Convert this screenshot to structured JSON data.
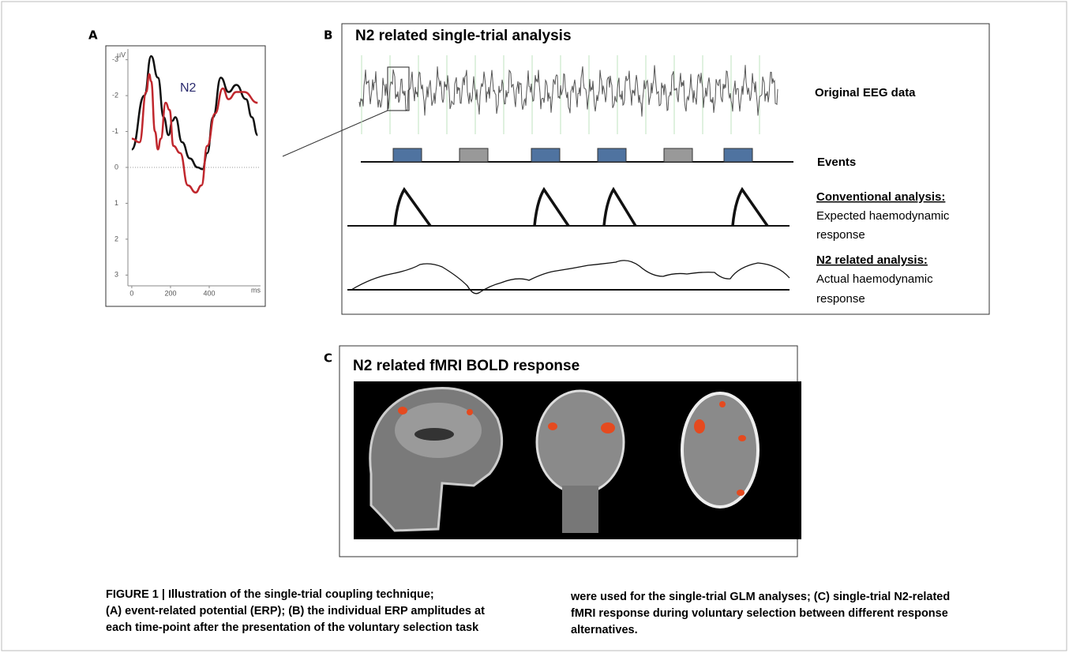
{
  "panels": {
    "a": {
      "label": "A",
      "chart": {
        "type": "line",
        "y_unit": "μV",
        "x_unit": "ms",
        "annotation": "N2",
        "xlim": [
          -20,
          665
        ],
        "ylim": [
          3.3,
          -3.3
        ],
        "xticks": [
          0,
          200,
          400
        ],
        "yticks": [
          -3,
          -2,
          -1,
          0,
          1,
          2,
          3
        ],
        "series": [
          {
            "color": "#111111",
            "x": [
              0,
              65,
              100,
              135,
              165,
              190,
              210,
              225,
              260,
              300,
              340,
              365,
              390,
              420,
              460,
              500,
              540,
              590,
              620,
              650
            ],
            "values": [
              -0.5,
              -2,
              -3.1,
              -2.5,
              -1.4,
              -0.9,
              -1.3,
              -1.4,
              -0.7,
              -0.25,
              0,
              0.05,
              -0.4,
              -1.4,
              -2.5,
              -2.1,
              -2.3,
              -1.9,
              -1.4,
              -0.9
            ]
          },
          {
            "color": "#c0272d",
            "x": [
              0,
              40,
              75,
              90,
              100,
              120,
              135,
              150,
              175,
              195,
              215,
              250,
              290,
              330,
              360,
              390,
              430,
              470,
              500,
              540,
              580,
              650
            ],
            "values": [
              -0.8,
              -0.7,
              -2.1,
              -2.6,
              -2.4,
              -1,
              -0.5,
              -0.8,
              -1.8,
              -1.6,
              -0.6,
              -0.4,
              0.5,
              0.7,
              0.5,
              -0.6,
              -1.5,
              -2.2,
              -1.9,
              -2.1,
              -2.1,
              -1.8
            ]
          }
        ]
      }
    },
    "b": {
      "label": "B",
      "title": "N2 related single-trial analysis",
      "eeg": "Original EEG data",
      "events": "Events",
      "conventional": {
        "heading": "Conventional analysis:",
        "lines": [
          "Expected haemodynamic",
          "response"
        ]
      },
      "n2": {
        "heading": "N2 related analysis:",
        "lines": [
          "Actual haemodynamic",
          "response"
        ]
      }
    },
    "c": {
      "label": "C",
      "title": "N2 related fMRI BOLD response"
    }
  },
  "caption": {
    "columns": [
      [
        "FIGURE 1 | Illustration of the single-trial coupling technique;",
        "(A) event-related potential (ERP); (B) the individual ERP amplitudes at",
        "each time-point after the presentation of the voluntary selection task"
      ],
      [
        "were used for the single-trial GLM analyses; (C) single-trial N2-related",
        "fMRI response during voluntary selection between different response",
        "alternatives."
      ]
    ]
  }
}
